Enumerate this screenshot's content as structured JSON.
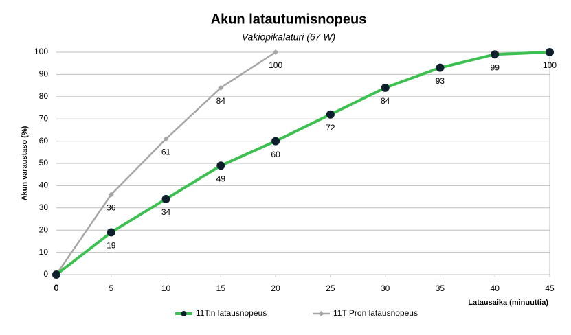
{
  "chart_data": {
    "type": "line",
    "title": "Akun latautumisnopeus",
    "subtitle": "Vakiopikalaturi (67 W)",
    "x_label": "Latausaika (minuuttia)",
    "y_label": "Akun varaustaso (%)",
    "xlim": [
      0,
      45
    ],
    "xticks": [
      0,
      5,
      10,
      15,
      20,
      25,
      30,
      35,
      40,
      45
    ],
    "ylim": [
      0,
      100
    ],
    "yticks": [
      0,
      10,
      20,
      30,
      40,
      50,
      60,
      70,
      80,
      90,
      100
    ],
    "grid": true,
    "legend": "bottom",
    "series": [
      {
        "name": "11T:n latausnopeus",
        "color": "#3cc050",
        "marker_color": "#0d1f2d",
        "marker": "circle",
        "x": [
          0,
          5,
          10,
          15,
          20,
          25,
          30,
          35,
          40,
          45
        ],
        "values": [
          0,
          19,
          34,
          49,
          60,
          72,
          84,
          93,
          99,
          100
        ]
      },
      {
        "name": "11T Pron latausnopeus",
        "color": "#a6a6a6",
        "marker_color": "#a6a6a6",
        "marker": "diamond",
        "x": [
          0,
          5,
          10,
          15,
          20
        ],
        "values": [
          0,
          36,
          61,
          84,
          100
        ]
      }
    ]
  }
}
